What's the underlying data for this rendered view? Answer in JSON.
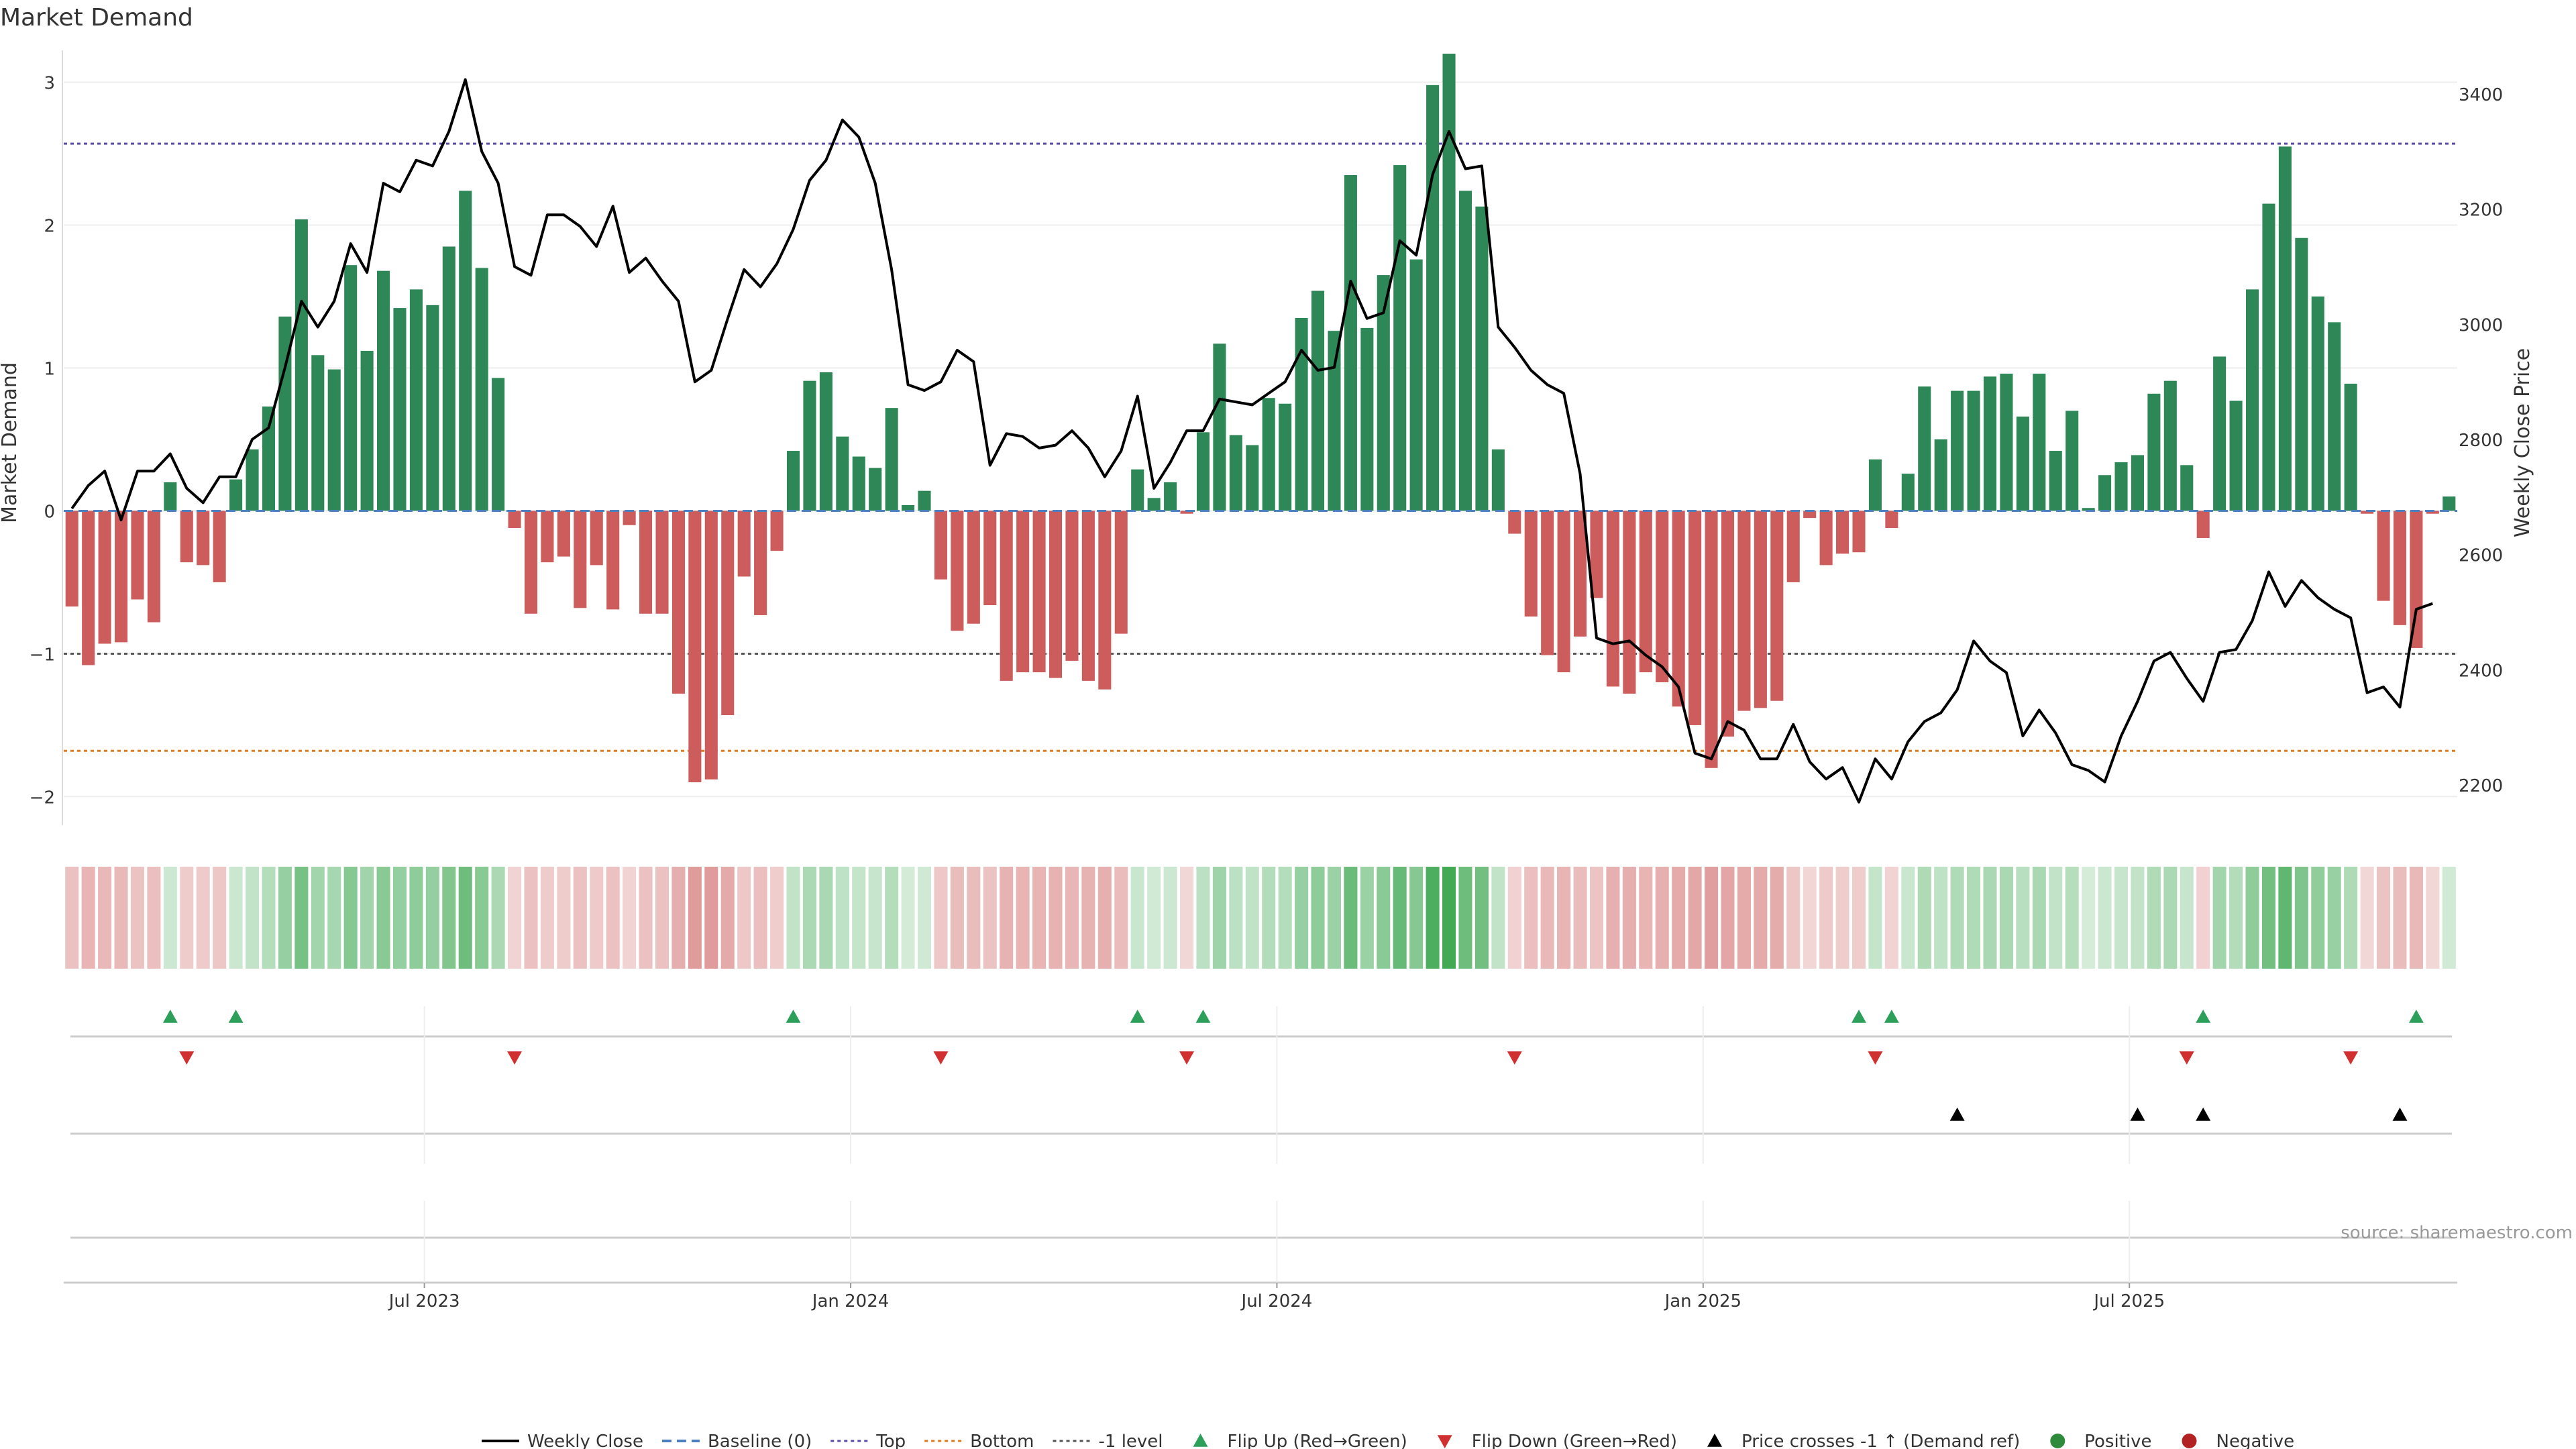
{
  "chart_data": {
    "type": "bar",
    "title": "Market Demand",
    "ylabel_left": "Market Demand",
    "ylabel_right": "Weekly Close Price",
    "ylim_left": [
      -2.2,
      3.2
    ],
    "ylim_right": [
      2130,
      3470
    ],
    "yticks_left": [
      -2,
      -1,
      0,
      1,
      2,
      3
    ],
    "ytick_labels_left": [
      "−2",
      "−1",
      "0",
      "1",
      "2",
      "3"
    ],
    "yticks_right": [
      2200,
      2400,
      2600,
      2800,
      3000,
      3200,
      3400
    ],
    "ytick_labels_right": [
      "2200",
      "2400",
      "2600",
      "2800",
      "3000",
      "3200",
      "3400"
    ],
    "x_tick_index": [
      22,
      48,
      74,
      100,
      126
    ],
    "x_tick_labels": [
      "Jul 2023",
      "Jan 2024",
      "Jul 2024",
      "Jan 2025",
      "Jul 2025"
    ],
    "reference_lines": [
      {
        "name": "Top",
        "value": 2.57,
        "color": "#5b4aa6"
      },
      {
        "name": "-1 level",
        "value": -1.0,
        "color": "#555555"
      },
      {
        "name": "Bottom",
        "value": -1.68,
        "color": "#e07a1f"
      }
    ],
    "demand": [
      -0.67,
      -1.08,
      -0.93,
      -0.92,
      -0.62,
      -0.78,
      0.2,
      -0.36,
      -0.38,
      -0.5,
      0.22,
      0.43,
      0.73,
      1.36,
      2.04,
      1.09,
      0.99,
      1.72,
      1.12,
      1.68,
      1.42,
      1.55,
      1.44,
      1.85,
      2.24,
      1.7,
      0.93,
      -0.12,
      -0.72,
      -0.36,
      -0.32,
      -0.68,
      -0.38,
      -0.69,
      -0.1,
      -0.72,
      -0.72,
      -1.28,
      -1.9,
      -1.88,
      -1.43,
      -0.46,
      -0.73,
      -0.28,
      0.42,
      0.91,
      0.97,
      0.52,
      0.38,
      0.3,
      0.72,
      0.04,
      0.14,
      -0.48,
      -0.84,
      -0.79,
      -0.66,
      -1.19,
      -1.13,
      -1.13,
      -1.17,
      -1.05,
      -1.19,
      -1.25,
      -0.86,
      0.29,
      0.09,
      0.2,
      -0.02,
      0.55,
      1.17,
      0.53,
      0.46,
      0.79,
      0.75,
      1.35,
      1.54,
      1.26,
      2.35,
      1.28,
      1.65,
      2.42,
      1.76,
      2.98,
      3.2,
      2.24,
      2.13,
      0.43,
      -0.16,
      -0.74,
      -1.01,
      -1.13,
      -0.88,
      -0.61,
      -1.23,
      -1.28,
      -1.13,
      -1.2,
      -1.37,
      -1.5,
      -1.8,
      -1.58,
      -1.4,
      -1.38,
      -1.33,
      -0.5,
      -0.05,
      -0.38,
      -0.3,
      -0.29,
      0.36,
      -0.12,
      0.26,
      0.87,
      0.5,
      0.84,
      0.84,
      0.94,
      0.96,
      0.66,
      0.96,
      0.42,
      0.7,
      0.02,
      0.25,
      0.34,
      0.39,
      0.82,
      0.91,
      0.32,
      -0.19,
      1.08,
      0.77,
      1.55,
      2.15,
      2.55,
      1.91,
      1.5,
      1.32,
      0.89,
      -0.02,
      -0.63,
      -0.8,
      -0.96,
      -0.02,
      0.1
    ],
    "price": [
      2680,
      2720,
      2745,
      2660,
      2745,
      2745,
      2775,
      2715,
      2690,
      2735,
      2735,
      2800,
      2820,
      2925,
      3040,
      2995,
      3040,
      3140,
      3090,
      3245,
      3230,
      3285,
      3275,
      3335,
      3425,
      3300,
      3245,
      3100,
      3085,
      3190,
      3190,
      3170,
      3135,
      3205,
      3090,
      3115,
      3075,
      3040,
      2900,
      2920,
      3010,
      3095,
      3065,
      3105,
      3165,
      3250,
      3285,
      3355,
      3325,
      3245,
      3095,
      2895,
      2885,
      2900,
      2955,
      2935,
      2755,
      2810,
      2805,
      2785,
      2790,
      2815,
      2785,
      2735,
      2780,
      2875,
      2715,
      2760,
      2815,
      2815,
      2870,
      2865,
      2860,
      2880,
      2900,
      2955,
      2920,
      2925,
      3075,
      3010,
      3020,
      3145,
      3120,
      3260,
      3335,
      3270,
      3275,
      2995,
      2960,
      2920,
      2895,
      2880,
      2740,
      2455,
      2445,
      2450,
      2425,
      2405,
      2370,
      2255,
      2245,
      2310,
      2295,
      2245,
      2245,
      2305,
      2240,
      2210,
      2230,
      2170,
      2245,
      2210,
      2275,
      2310,
      2325,
      2365,
      2450,
      2415,
      2395,
      2285,
      2330,
      2290,
      2235,
      2225,
      2205,
      2285,
      2345,
      2415,
      2430,
      2385,
      2345,
      2430,
      2435,
      2485,
      2570,
      2510,
      2555,
      2525,
      2505,
      2490,
      2360,
      2370,
      2335,
      2505,
      2515
    ],
    "flip_up_index": [
      6,
      10,
      44,
      65,
      69,
      109,
      111,
      130,
      143
    ],
    "flip_down_index": [
      7,
      27,
      53,
      68,
      88,
      110,
      129,
      139
    ],
    "price_cross_index": [
      115,
      126,
      130,
      142
    ],
    "source_text": "source: sharemaestro.com",
    "legend": [
      {
        "label": "Weekly Close",
        "type": "line",
        "color": "#000000"
      },
      {
        "label": "Baseline (0)",
        "type": "dash",
        "color": "#4a7fc1"
      },
      {
        "label": "Top",
        "type": "dot",
        "color": "#5b4aa6"
      },
      {
        "label": "Bottom",
        "type": "dot",
        "color": "#e07a1f"
      },
      {
        "label": "-1 level",
        "type": "dot",
        "color": "#555555"
      },
      {
        "label": "Flip Up (Red→Green)",
        "type": "triangle-up",
        "color": "#2ca05a"
      },
      {
        "label": "Flip Down (Green→Red)",
        "type": "triangle-down",
        "color": "#d13030"
      },
      {
        "label": "Price crosses -1 ↑ (Demand ref)",
        "type": "triangle-up",
        "color": "#000000"
      },
      {
        "label": "Positive",
        "type": "circle",
        "color": "#2e8b3c"
      },
      {
        "label": "Negative",
        "type": "circle",
        "color": "#b22222"
      }
    ],
    "colors": {
      "positive_bar": "#2e8757",
      "negative_bar": "#cd5c5c",
      "price_line": "#000000",
      "baseline": "#4a7fc1"
    }
  }
}
